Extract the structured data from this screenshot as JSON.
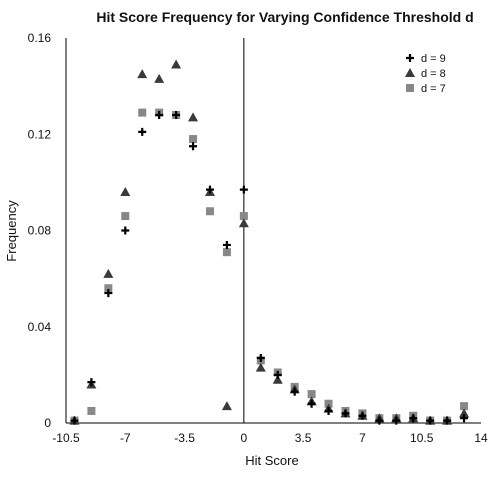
{
  "chart_data": {
    "type": "scatter",
    "title": "Hit Score Frequency for Varying Confidence Threshold d",
    "xlabel": "Hit Score",
    "ylabel": "Frequency",
    "xlim": [
      -10.5,
      14
    ],
    "ylim": [
      0,
      0.16
    ],
    "x_ticks": [
      -10.5,
      -7,
      -3.5,
      0,
      3.5,
      7,
      10.5,
      14
    ],
    "x_tick_labels": [
      "-10.5",
      "-7",
      "-3.5",
      "0",
      "3.5",
      "7",
      "10.5",
      "14"
    ],
    "y_ticks": [
      0,
      0.04,
      0.08,
      0.12,
      0.16
    ],
    "y_tick_labels": [
      "0",
      "0.04",
      "0.08",
      "0.12",
      "0.16"
    ],
    "grid": false,
    "legend_position": "top-right",
    "series": [
      {
        "name": "d = 9",
        "marker": "plus",
        "color": "#000000",
        "points": [
          [
            -10,
            0.001
          ],
          [
            -9,
            0.017
          ],
          [
            -8,
            0.054
          ],
          [
            -7,
            0.08
          ],
          [
            -6,
            0.121
          ],
          [
            -5,
            0.128
          ],
          [
            -4,
            0.128
          ],
          [
            -3,
            0.115
          ],
          [
            -2,
            0.097
          ],
          [
            -1,
            0.074
          ],
          [
            0,
            0.097
          ],
          [
            1,
            0.027
          ],
          [
            2,
            0.02
          ],
          [
            3,
            0.013
          ],
          [
            4,
            0.008
          ],
          [
            5,
            0.005
          ],
          [
            6,
            0.004
          ],
          [
            7,
            0.003
          ],
          [
            8,
            0.001
          ],
          [
            9,
            0.001
          ],
          [
            10,
            0.002
          ],
          [
            11,
            0.001
          ],
          [
            12,
            0.001
          ],
          [
            13,
            0.002
          ]
        ]
      },
      {
        "name": "d = 8",
        "marker": "triangle",
        "color": "#3a3a3a",
        "points": [
          [
            -10,
            0.001
          ],
          [
            -9,
            0.016
          ],
          [
            -8,
            0.062
          ],
          [
            -7,
            0.096
          ],
          [
            -6,
            0.145
          ],
          [
            -5,
            0.143
          ],
          [
            -4,
            0.149
          ],
          [
            -3,
            0.127
          ],
          [
            -2,
            0.096
          ],
          [
            -1,
            0.007
          ],
          [
            0,
            0.083
          ],
          [
            1,
            0.023
          ],
          [
            2,
            0.018
          ],
          [
            3,
            0.014
          ],
          [
            4,
            0.009
          ],
          [
            5,
            0.006
          ],
          [
            6,
            0.004
          ],
          [
            7,
            0.003
          ],
          [
            8,
            0.002
          ],
          [
            9,
            0.002
          ],
          [
            10,
            0.002
          ],
          [
            11,
            0.001
          ],
          [
            12,
            0.001
          ],
          [
            13,
            0.004
          ]
        ]
      },
      {
        "name": "d = 7",
        "marker": "square",
        "color": "#888888",
        "points": [
          [
            -10,
            0.001
          ],
          [
            -9,
            0.005
          ],
          [
            -8,
            0.056
          ],
          [
            -7,
            0.086
          ],
          [
            -6,
            0.129
          ],
          [
            -5,
            0.129
          ],
          [
            -4,
            0.128
          ],
          [
            -3,
            0.118
          ],
          [
            -2,
            0.088
          ],
          [
            -1,
            0.071
          ],
          [
            0,
            0.086
          ],
          [
            1,
            0.026
          ],
          [
            2,
            0.021
          ],
          [
            3,
            0.015
          ],
          [
            4,
            0.012
          ],
          [
            5,
            0.008
          ],
          [
            6,
            0.005
          ],
          [
            7,
            0.004
          ],
          [
            8,
            0.002
          ],
          [
            9,
            0.002
          ],
          [
            10,
            0.003
          ],
          [
            11,
            0.001
          ],
          [
            12,
            0.001
          ],
          [
            13,
            0.007
          ]
        ]
      }
    ]
  }
}
